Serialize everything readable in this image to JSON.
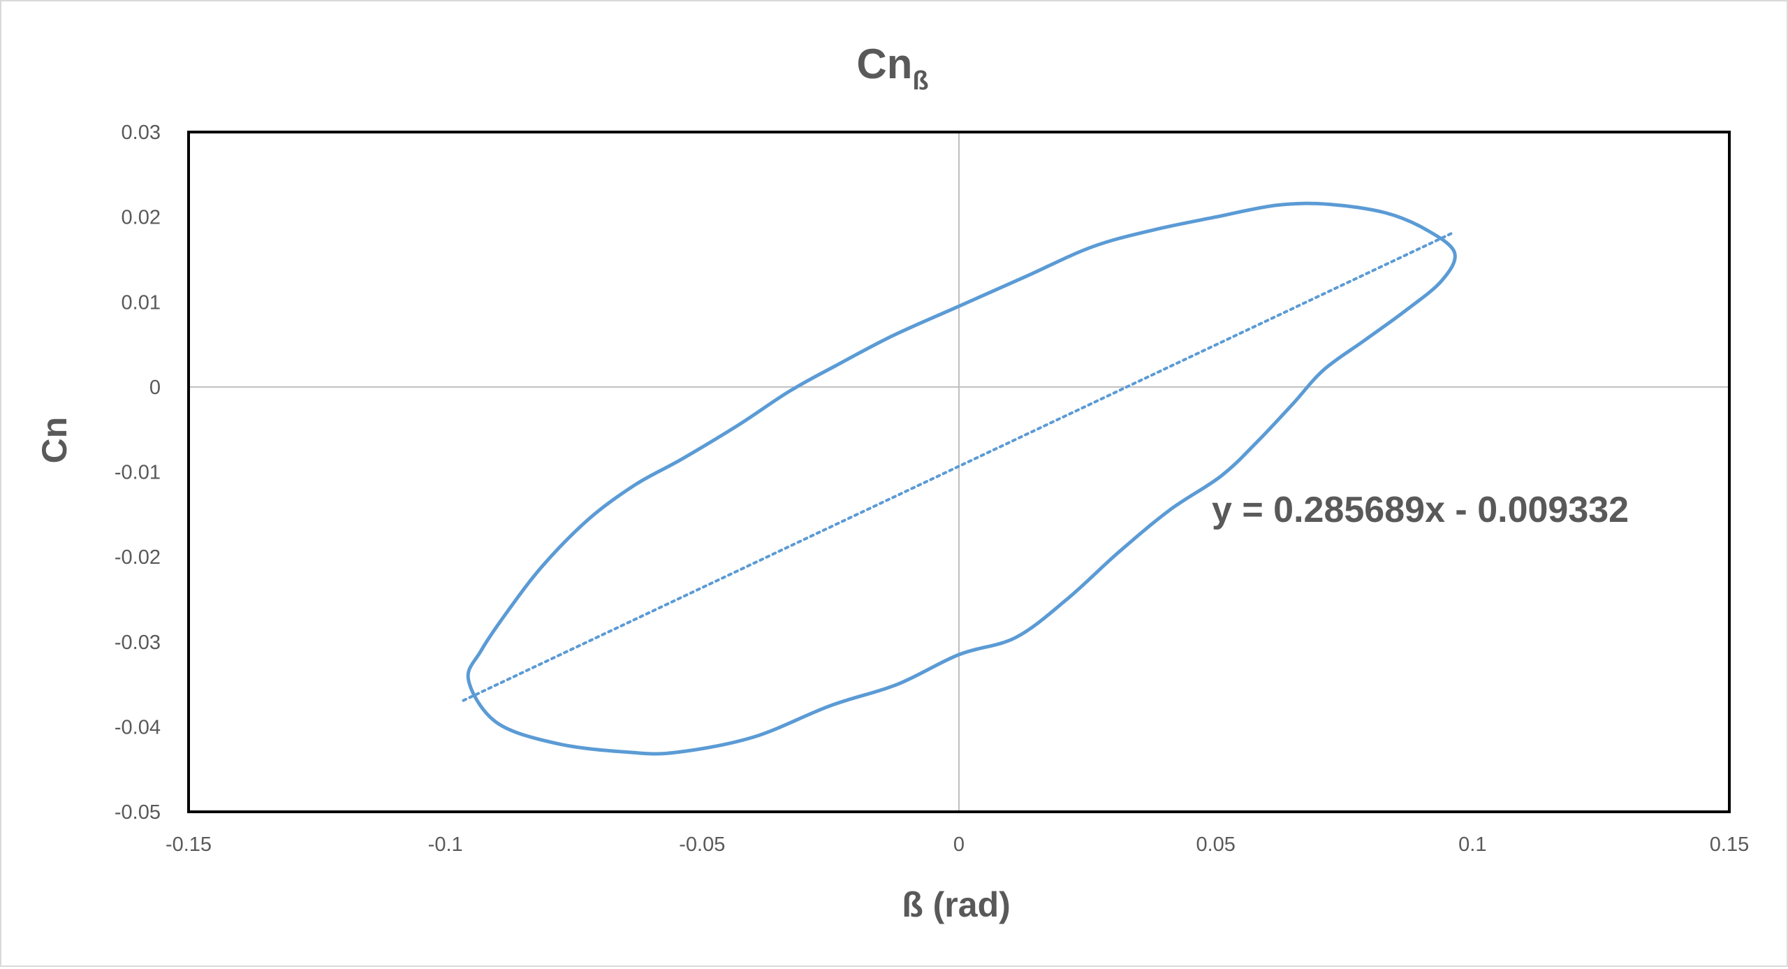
{
  "chart_data": {
    "type": "line",
    "title": "Cn",
    "title_subscript": "ß",
    "xlabel": "ß (rad)",
    "ylabel": "Cn",
    "xlim": [
      -0.15,
      0.15
    ],
    "ylim": [
      -0.05,
      0.03
    ],
    "x_ticks": [
      -0.15,
      -0.1,
      -0.05,
      0,
      0.05,
      0.1,
      0.15
    ],
    "x_tick_labels": [
      "-0.15",
      "-0.1",
      "-0.05",
      "0",
      "0.05",
      "0.1",
      "0.15"
    ],
    "y_ticks": [
      0.03,
      0.02,
      0.01,
      0,
      -0.01,
      -0.02,
      -0.03,
      -0.04,
      -0.05
    ],
    "y_tick_labels": [
      "0.03",
      "0.02",
      "0.01",
      "0",
      "-0.01",
      "-0.02",
      "-0.03",
      "-0.04",
      "-0.05"
    ],
    "grid": false,
    "zero_lines": true,
    "legend": "none",
    "series": [
      {
        "color": "#5b9bd5",
        "style": "solid",
        "closed": true,
        "points": [
          [
            -0.0955,
            -0.0345
          ],
          [
            -0.093,
            -0.031
          ],
          [
            -0.088,
            -0.0265
          ],
          [
            -0.081,
            -0.021
          ],
          [
            -0.072,
            -0.0155
          ],
          [
            -0.063,
            -0.0115
          ],
          [
            -0.054,
            -0.0085
          ],
          [
            -0.043,
            -0.0045
          ],
          [
            -0.033,
            -0.0005
          ],
          [
            -0.024,
            0.0025
          ],
          [
            -0.013,
            0.006
          ],
          [
            0.0,
            0.0095
          ],
          [
            0.013,
            0.013
          ],
          [
            0.026,
            0.0165
          ],
          [
            0.038,
            0.0185
          ],
          [
            0.05,
            0.02
          ],
          [
            0.062,
            0.0214
          ],
          [
            0.072,
            0.0215
          ],
          [
            0.083,
            0.0205
          ],
          [
            0.091,
            0.0185
          ],
          [
            0.0965,
            0.0158
          ],
          [
            0.094,
            0.0125
          ],
          [
            0.087,
            0.009
          ],
          [
            0.079,
            0.0055
          ],
          [
            0.071,
            0.002
          ],
          [
            0.065,
            -0.002
          ],
          [
            0.058,
            -0.0065
          ],
          [
            0.051,
            -0.0105
          ],
          [
            0.041,
            -0.0145
          ],
          [
            0.031,
            -0.0195
          ],
          [
            0.021,
            -0.025
          ],
          [
            0.011,
            -0.0295
          ],
          [
            0.0,
            -0.0315
          ],
          [
            -0.012,
            -0.035
          ],
          [
            -0.025,
            -0.0375
          ],
          [
            -0.04,
            -0.0412
          ],
          [
            -0.055,
            -0.043
          ],
          [
            -0.064,
            -0.043
          ],
          [
            -0.078,
            -0.042
          ],
          [
            -0.09,
            -0.0395
          ]
        ]
      },
      {
        "color": "#5b9bd5",
        "style": "dotted",
        "trendline": true,
        "slope": 0.285689,
        "intercept": -0.009332,
        "x_range": [
          -0.0965,
          0.0965
        ],
        "equation": "y = 0.285689x - 0.009332"
      }
    ]
  }
}
